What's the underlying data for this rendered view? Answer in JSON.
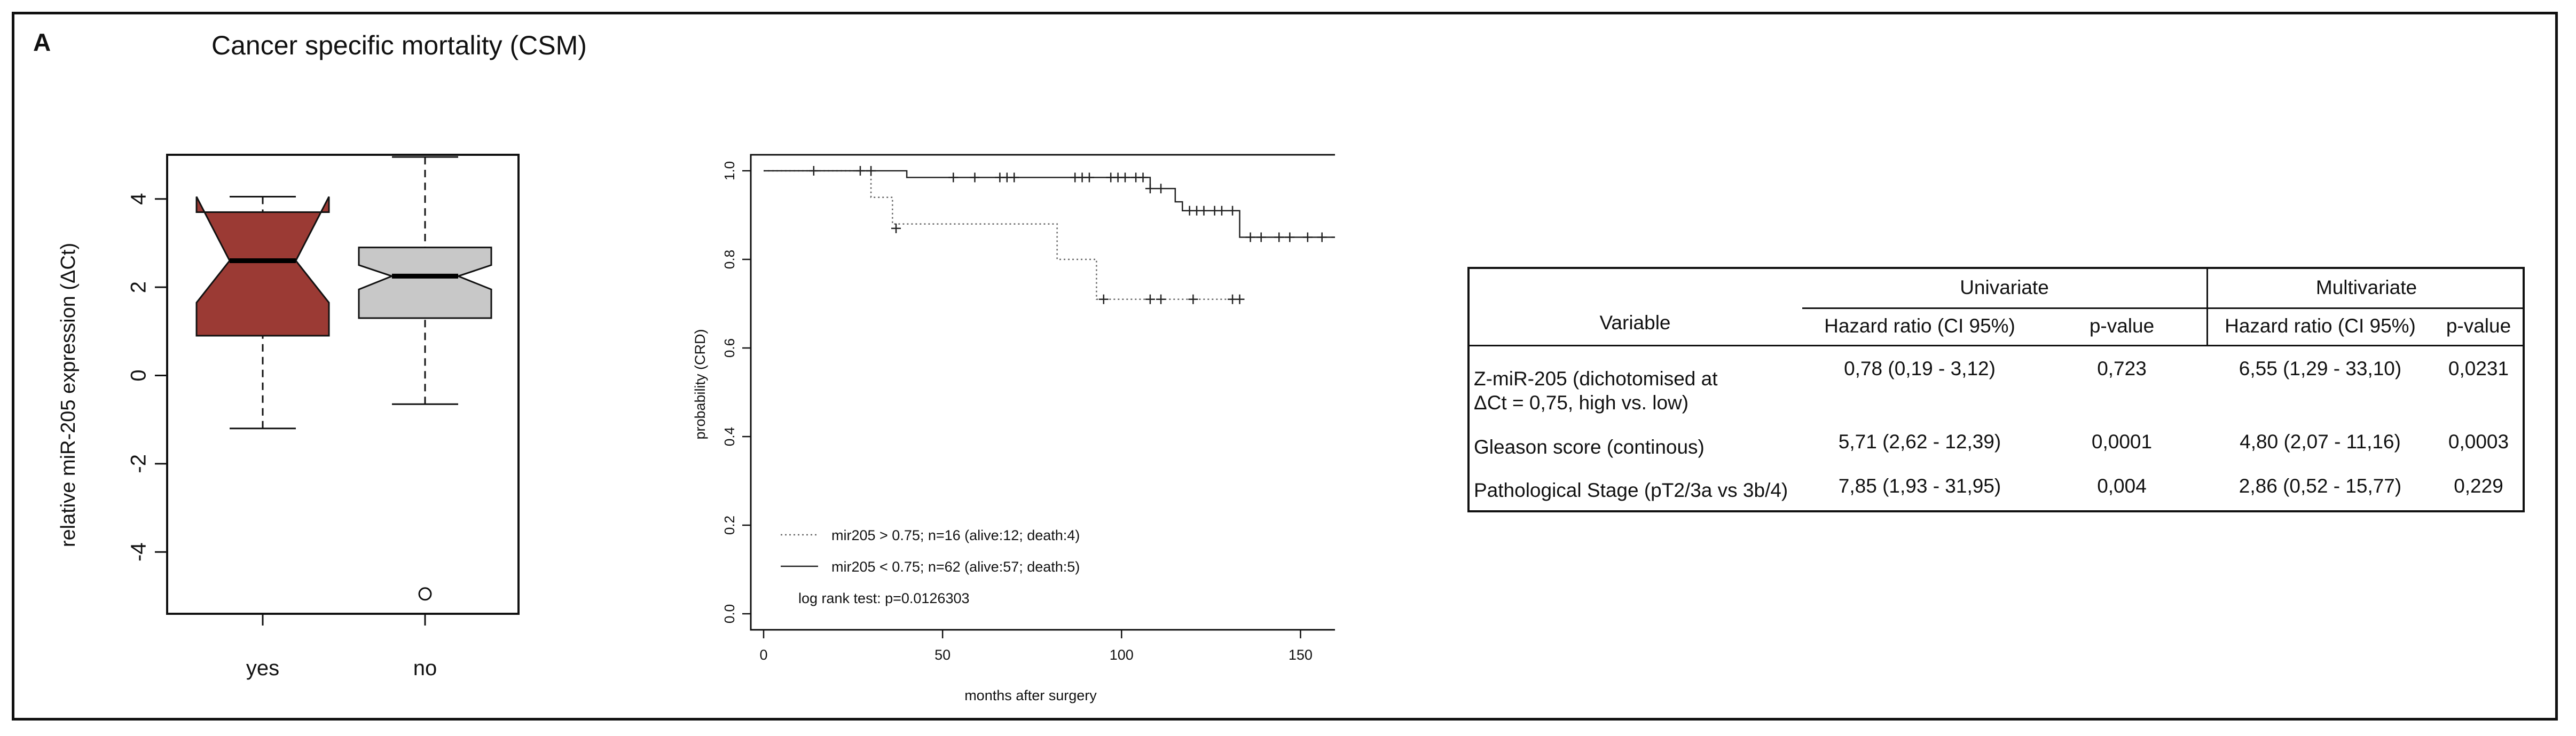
{
  "figure": {
    "panel_label": "A",
    "title": "Cancer specific mortality (CSM)"
  },
  "chart_data": [
    {
      "type": "boxplot",
      "ylabel": "relative miR-205 expression (ΔCt)",
      "xlabel": "",
      "ylim": [
        -5.4,
        5.0
      ],
      "yticks": [
        4,
        2,
        0,
        -2,
        -4
      ],
      "ytick_labels": [
        "4",
        "2",
        "0",
        "-2",
        "-4"
      ],
      "categories": [
        "yes",
        "no"
      ],
      "notched": true,
      "boxes": [
        {
          "name": "yes",
          "whisker_low": -1.2,
          "q1": 0.9,
          "median": 2.6,
          "q3": 3.7,
          "whisker_high": 4.05,
          "notch_low": 1.65,
          "notch_high": 4.05,
          "outliers": [],
          "color": "#9b3a34"
        },
        {
          "name": "no",
          "whisker_low": -0.65,
          "q1": 1.3,
          "median": 2.25,
          "q3": 2.9,
          "whisker_high": 4.95,
          "notch_low": 1.95,
          "notch_high": 2.5,
          "outliers": [
            -4.95
          ],
          "color": "#c8c8c8"
        }
      ]
    },
    {
      "type": "line",
      "subtype": "kaplan-meier",
      "xlabel": "months after surgery",
      "ylabel": "probability (CRD)",
      "xlim": [
        0,
        175
      ],
      "ylim": [
        0,
        1.0
      ],
      "xticks": [
        0,
        50,
        100,
        150
      ],
      "yticks": [
        0.0,
        0.2,
        0.4,
        0.6,
        0.8,
        1.0
      ],
      "ytick_labels": [
        "0.0",
        "0.2",
        "0.4",
        "0.6",
        "0.8",
        "1.0"
      ],
      "series": [
        {
          "name": "mir205 > 0.75; n=16 (alive:12; death:4)",
          "style": "dotted",
          "steps": [
            [
              0,
              1.0
            ],
            [
              30,
              0.94
            ],
            [
              36,
              0.88
            ],
            [
              82,
              0.8
            ],
            [
              93,
              0.71
            ],
            [
              133,
              0.71
            ]
          ],
          "censor_x": [
            37,
            95,
            108,
            111,
            120,
            131,
            133
          ],
          "censor_y": [
            0.87,
            0.71,
            0.71,
            0.71,
            0.71,
            0.71,
            0.71
          ]
        },
        {
          "name": "mir205 < 0.75; n=62 (alive:57; death:5)",
          "style": "solid",
          "steps": [
            [
              0,
              1.0
            ],
            [
              40,
              0.985
            ],
            [
              108,
              0.96
            ],
            [
              115,
              0.93
            ],
            [
              117,
              0.91
            ],
            [
              133,
              0.85
            ],
            [
              173,
              0.85
            ]
          ],
          "censor_x": [
            14,
            27,
            30,
            53,
            59,
            66,
            68,
            70,
            87,
            89,
            91,
            97,
            99,
            101,
            104,
            106,
            108,
            111,
            119,
            121,
            123,
            126,
            128,
            131,
            136,
            139,
            144,
            147,
            152,
            156,
            160,
            164,
            168,
            172
          ],
          "censor_y": [
            1.0,
            1.0,
            1.0,
            0.985,
            0.985,
            0.985,
            0.985,
            0.985,
            0.985,
            0.985,
            0.985,
            0.985,
            0.985,
            0.985,
            0.985,
            0.985,
            0.96,
            0.96,
            0.91,
            0.91,
            0.91,
            0.91,
            0.91,
            0.91,
            0.85,
            0.85,
            0.85,
            0.85,
            0.85,
            0.85,
            0.85,
            0.85,
            0.85,
            0.85
          ]
        }
      ],
      "annotation": "log rank test: p=0.0126303"
    },
    {
      "type": "table",
      "group_headers": [
        "Univariate",
        "Multivariate"
      ],
      "columns": [
        "Variable",
        "Hazard ratio (CI 95%)",
        "p-value",
        "Hazard ratio (CI 95%)",
        "p-value"
      ],
      "rows": [
        [
          "Z-miR-205 (dichotomised at",
          "0,78 (0,19 - 3,12)",
          "0,723",
          "6,55 (1,29 - 33,10)",
          "0,0231"
        ],
        [
          "Gleason score (continous)",
          "5,71 (2,62 - 12,39)",
          "0,0001",
          "4,80 (2,07 - 11,16)",
          "0,0003"
        ],
        [
          "Pathological Stage (pT2/3a vs 3b/4)",
          "7,85 (1,93 - 31,95)",
          "0,004",
          "2,86 (0,52 - 15,77)",
          "0,229"
        ]
      ],
      "row1_continuation": "ΔCt = 0,75, high vs. low)"
    }
  ]
}
